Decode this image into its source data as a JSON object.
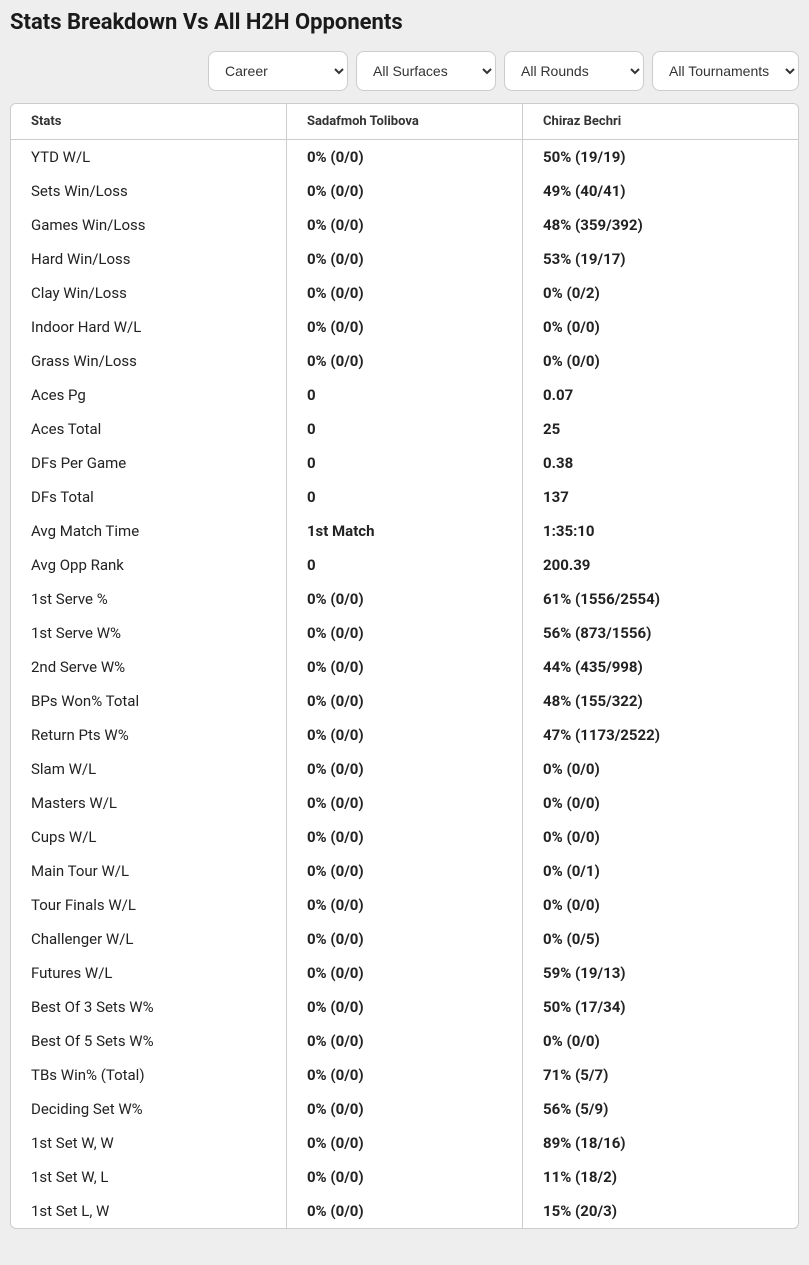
{
  "title": "Stats Breakdown Vs All H2H Opponents",
  "filters": {
    "period": "Career",
    "surface": "All Surfaces",
    "round": "All Rounds",
    "tournament": "All Tournaments"
  },
  "columns": {
    "stats": "Stats",
    "player1": "Sadafmoh Tolibova",
    "player2": "Chiraz Bechri"
  },
  "rows": [
    {
      "stat": "YTD W/L",
      "p1": "0% (0/0)",
      "p2": "50% (19/19)"
    },
    {
      "stat": "Sets Win/Loss",
      "p1": "0% (0/0)",
      "p2": "49% (40/41)"
    },
    {
      "stat": "Games Win/Loss",
      "p1": "0% (0/0)",
      "p2": "48% (359/392)"
    },
    {
      "stat": "Hard Win/Loss",
      "p1": "0% (0/0)",
      "p2": "53% (19/17)"
    },
    {
      "stat": "Clay Win/Loss",
      "p1": "0% (0/0)",
      "p2": "0% (0/2)"
    },
    {
      "stat": "Indoor Hard W/L",
      "p1": "0% (0/0)",
      "p2": "0% (0/0)"
    },
    {
      "stat": "Grass Win/Loss",
      "p1": "0% (0/0)",
      "p2": "0% (0/0)"
    },
    {
      "stat": "Aces Pg",
      "p1": "0",
      "p2": "0.07"
    },
    {
      "stat": "Aces Total",
      "p1": "0",
      "p2": "25"
    },
    {
      "stat": "DFs Per Game",
      "p1": "0",
      "p2": "0.38"
    },
    {
      "stat": "DFs Total",
      "p1": "0",
      "p2": "137"
    },
    {
      "stat": "Avg Match Time",
      "p1": "1st Match",
      "p2": "1:35:10"
    },
    {
      "stat": "Avg Opp Rank",
      "p1": "0",
      "p2": "200.39"
    },
    {
      "stat": "1st Serve %",
      "p1": "0% (0/0)",
      "p2": "61% (1556/2554)"
    },
    {
      "stat": "1st Serve W%",
      "p1": "0% (0/0)",
      "p2": "56% (873/1556)"
    },
    {
      "stat": "2nd Serve W%",
      "p1": "0% (0/0)",
      "p2": "44% (435/998)"
    },
    {
      "stat": "BPs Won% Total",
      "p1": "0% (0/0)",
      "p2": "48% (155/322)"
    },
    {
      "stat": "Return Pts W%",
      "p1": "0% (0/0)",
      "p2": "47% (1173/2522)"
    },
    {
      "stat": "Slam W/L",
      "p1": "0% (0/0)",
      "p2": "0% (0/0)"
    },
    {
      "stat": "Masters W/L",
      "p1": "0% (0/0)",
      "p2": "0% (0/0)"
    },
    {
      "stat": "Cups W/L",
      "p1": "0% (0/0)",
      "p2": "0% (0/0)"
    },
    {
      "stat": "Main Tour W/L",
      "p1": "0% (0/0)",
      "p2": "0% (0/1)"
    },
    {
      "stat": "Tour Finals W/L",
      "p1": "0% (0/0)",
      "p2": "0% (0/0)"
    },
    {
      "stat": "Challenger W/L",
      "p1": "0% (0/0)",
      "p2": "0% (0/5)"
    },
    {
      "stat": "Futures W/L",
      "p1": "0% (0/0)",
      "p2": "59% (19/13)"
    },
    {
      "stat": "Best Of 3 Sets W%",
      "p1": "0% (0/0)",
      "p2": "50% (17/34)"
    },
    {
      "stat": "Best Of 5 Sets W%",
      "p1": "0% (0/0)",
      "p2": "0% (0/0)"
    },
    {
      "stat": "TBs Win% (Total)",
      "p1": "0% (0/0)",
      "p2": "71% (5/7)"
    },
    {
      "stat": "Deciding Set W%",
      "p1": "0% (0/0)",
      "p2": "56% (5/9)"
    },
    {
      "stat": "1st Set W, W",
      "p1": "0% (0/0)",
      "p2": "89% (18/16)"
    },
    {
      "stat": "1st Set W, L",
      "p1": "0% (0/0)",
      "p2": "11% (18/2)"
    },
    {
      "stat": "1st Set L, W",
      "p1": "0% (0/0)",
      "p2": "15% (20/3)"
    }
  ]
}
